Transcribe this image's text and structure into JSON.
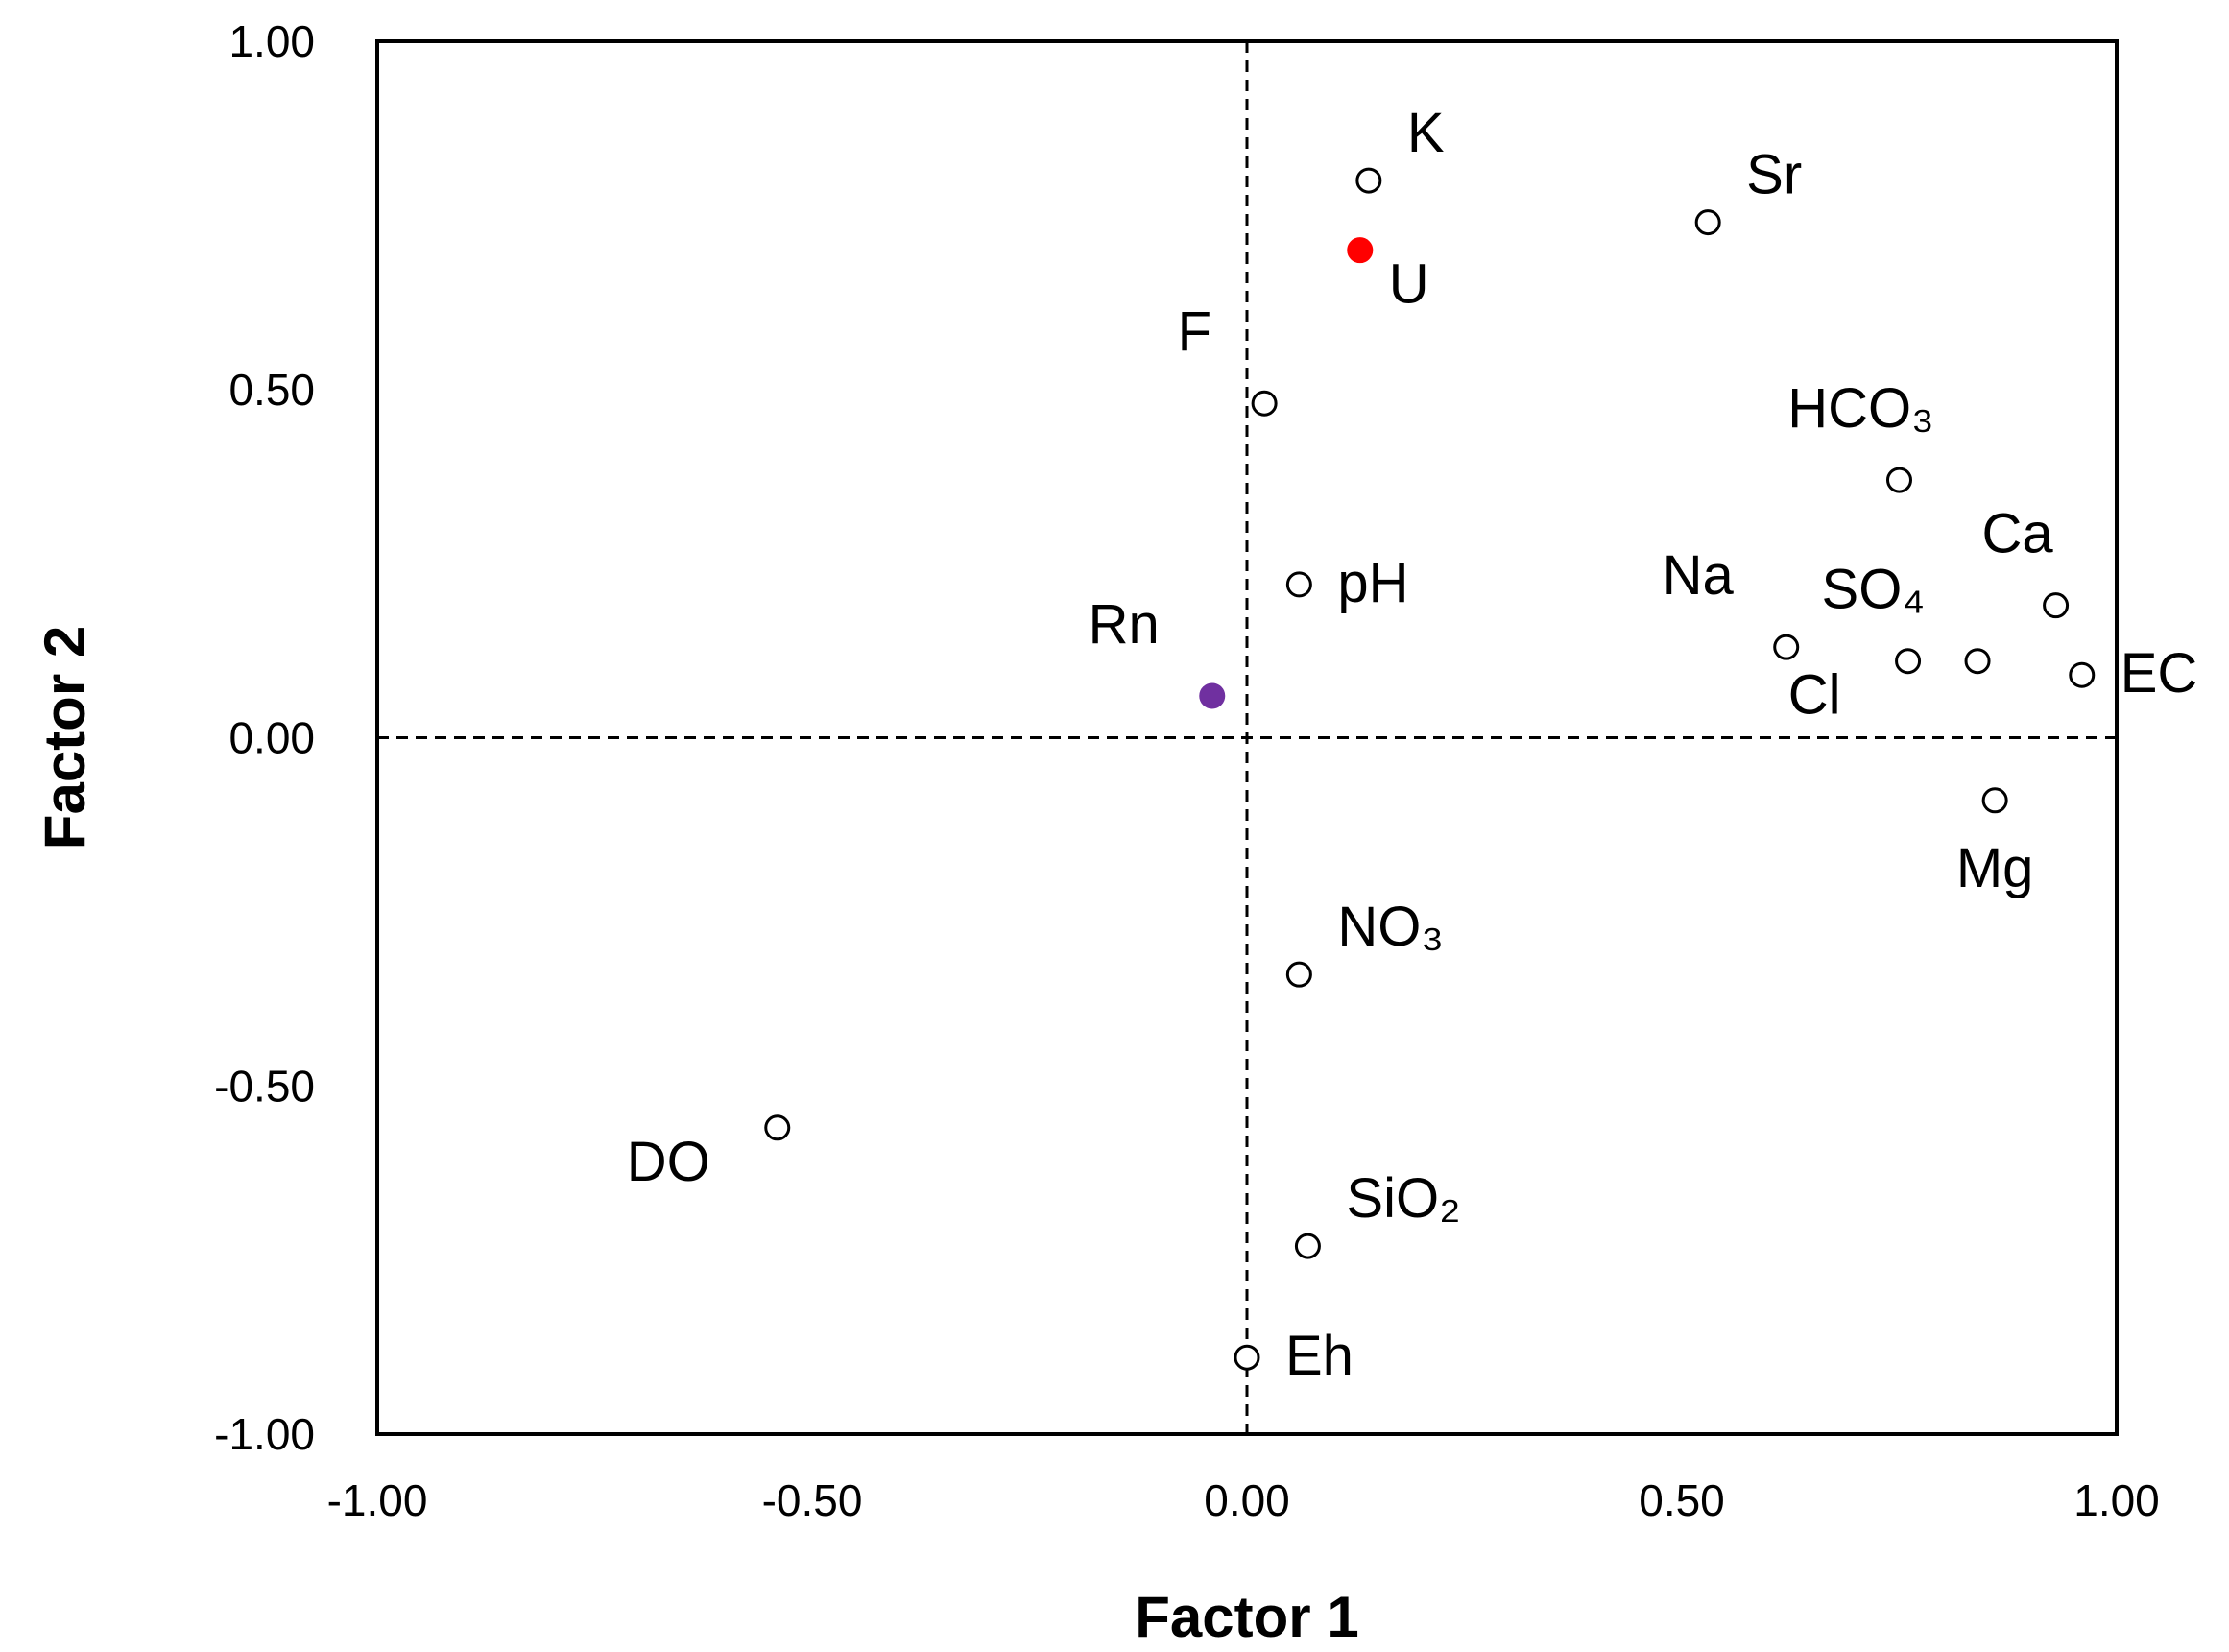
{
  "chart_data": {
    "type": "scatter",
    "xlabel": "Factor 1",
    "ylabel": "Factor 2",
    "xlim": [
      -1.0,
      1.0
    ],
    "ylim": [
      -1.0,
      1.0
    ],
    "x_ticks": [
      "-1.00",
      "-0.50",
      "0.00",
      "0.50",
      "1.00"
    ],
    "y_ticks": [
      "-1.00",
      "-0.50",
      "0.00",
      "0.50",
      "1.00"
    ],
    "x_tick_values": [
      -1.0,
      -0.5,
      0.0,
      0.5,
      1.0
    ],
    "y_tick_values": [
      -1.0,
      -0.5,
      0.0,
      0.5,
      1.0
    ],
    "grid": false,
    "reference_lines": "dashed lines at x = 0 and y = 0",
    "colors": {
      "default": "#000000",
      "U": "#ff0000",
      "Rn": "#7030a0"
    },
    "points": [
      {
        "label": "K",
        "x": 0.14,
        "y": 0.8,
        "filled": false,
        "color": "#000000",
        "label_pos": "above-right"
      },
      {
        "label": "U",
        "x": 0.13,
        "y": 0.7,
        "filled": true,
        "color": "#ff0000",
        "label_pos": "below-right"
      },
      {
        "label": "Sr",
        "x": 0.53,
        "y": 0.74,
        "filled": false,
        "color": "#000000",
        "label_pos": "above-right"
      },
      {
        "label": "F",
        "x": 0.02,
        "y": 0.48,
        "filled": false,
        "color": "#000000",
        "label_pos": "upper-left"
      },
      {
        "label": "HCO₃",
        "x": 0.75,
        "y": 0.37,
        "filled": false,
        "color": "#000000",
        "label_pos": "above"
      },
      {
        "label": "Ca",
        "x": 0.93,
        "y": 0.19,
        "filled": false,
        "color": "#000000",
        "label_pos": "above"
      },
      {
        "label": "pH",
        "x": 0.06,
        "y": 0.22,
        "filled": false,
        "color": "#000000",
        "label_pos": "right"
      },
      {
        "label": "Na",
        "x": 0.62,
        "y": 0.13,
        "filled": false,
        "color": "#000000",
        "label_pos": "upper-left"
      },
      {
        "label": "SO₄",
        "x": 0.84,
        "y": 0.11,
        "filled": false,
        "color": "#000000",
        "label_pos": "upper-left"
      },
      {
        "label": "Cl",
        "x": 0.76,
        "y": 0.11,
        "filled": false,
        "color": "#000000",
        "label_pos": "lower-left"
      },
      {
        "label": "EC",
        "x": 0.96,
        "y": 0.09,
        "filled": false,
        "color": "#000000",
        "label_pos": "right"
      },
      {
        "label": "Rn",
        "x": -0.04,
        "y": 0.06,
        "filled": true,
        "color": "#7030a0",
        "label_pos": "upper-left"
      },
      {
        "label": "Mg",
        "x": 0.86,
        "y": -0.09,
        "filled": false,
        "color": "#000000",
        "label_pos": "below"
      },
      {
        "label": "NO₃",
        "x": 0.06,
        "y": -0.34,
        "filled": false,
        "color": "#000000",
        "label_pos": "above-right"
      },
      {
        "label": "DO",
        "x": -0.54,
        "y": -0.56,
        "filled": false,
        "color": "#000000",
        "label_pos": "lower-left"
      },
      {
        "label": "SiO₂",
        "x": 0.07,
        "y": -0.73,
        "filled": false,
        "color": "#000000",
        "label_pos": "above-right"
      },
      {
        "label": "Eh",
        "x": 0.0,
        "y": -0.89,
        "filled": false,
        "color": "#000000",
        "label_pos": "right"
      }
    ]
  }
}
